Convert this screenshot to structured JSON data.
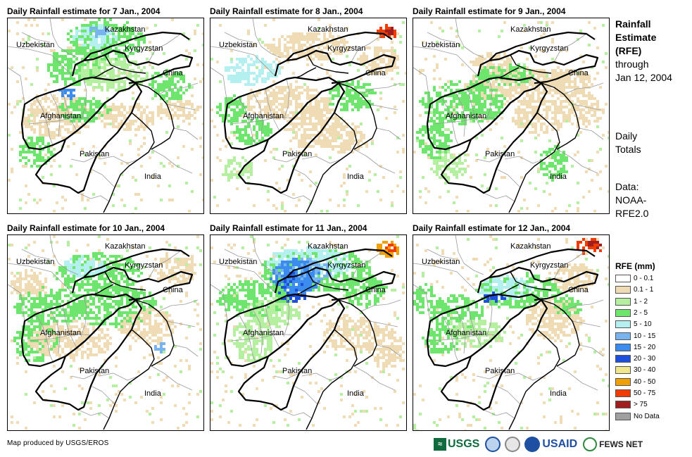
{
  "panels": [
    {
      "title": "Daily Rainfall estimate for 7 Jan., 2004"
    },
    {
      "title": "Daily Rainfall estimate for 8 Jan., 2004"
    },
    {
      "title": "Daily Rainfall estimate for 9 Jan., 2004"
    },
    {
      "title": "Daily Rainfall estimate for 10 Jan., 2004"
    },
    {
      "title": "Daily Rainfall estimate for 11 Jan., 2004"
    },
    {
      "title": "Daily Rainfall estimate for 12 Jan., 2004"
    }
  ],
  "map_labels": {
    "kazakhstan": "Kazakhstan",
    "uzbekistan": "Uzbekistan",
    "kyrgyzstan": "Kyrgyzstan",
    "china": "China",
    "afghanistan": "Afghanistan",
    "pakistan": "Pakistan",
    "india": "India"
  },
  "side": {
    "line1": "Rainfall",
    "line2": "Estimate",
    "line3": "(RFE)",
    "line4": "through",
    "line5": "Jan 12, 2004",
    "totals1": "Daily",
    "totals2": "Totals",
    "data1": "Data:",
    "data2": "NOAA-",
    "data3": "RFE2.0"
  },
  "legend": {
    "title": "RFE (mm)",
    "items": [
      {
        "label": "0 - 0.1",
        "color": "#ffffff"
      },
      {
        "label": "0.1 - 1",
        "color": "#f0dcb4"
      },
      {
        "label": "1 - 2",
        "color": "#b4f0a0"
      },
      {
        "label": "2 - 5",
        "color": "#6ee66e"
      },
      {
        "label": "5 - 10",
        "color": "#b4f0f0"
      },
      {
        "label": "10 - 15",
        "color": "#78b4f0"
      },
      {
        "label": "15 - 20",
        "color": "#3c8cf0"
      },
      {
        "label": "20 - 30",
        "color": "#1e50dc"
      },
      {
        "label": "30 - 40",
        "color": "#f0e68c"
      },
      {
        "label": "40 - 50",
        "color": "#f0a000"
      },
      {
        "label": "50 - 75",
        "color": "#f03c00"
      },
      {
        "label": "> 75",
        "color": "#a01e1e"
      },
      {
        "label": "No Data",
        "color": "#a0a0a0"
      }
    ]
  },
  "footer": {
    "credit": "Map produced by USGS/EROS",
    "logo_usgs": "USGS",
    "logo_usaid": "USAID",
    "logo_fews": "FEWS NET"
  }
}
